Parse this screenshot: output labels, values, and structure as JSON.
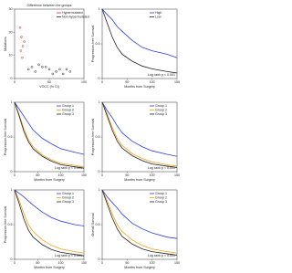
{
  "chart_data": [
    {
      "type": "scatter",
      "title": "Difference between the groups",
      "xlabel": "VOCC (% CI)",
      "ylabel": "Mutations",
      "xlim": [
        0,
        100
      ],
      "ylim": [
        0,
        30
      ],
      "xticks": [
        0,
        50,
        100
      ],
      "yticks": [
        0,
        10,
        20,
        30
      ],
      "series": [
        {
          "name": "Hypermutated",
          "color": "#d62728",
          "x": [
            8,
            10,
            12,
            9,
            11,
            14
          ],
          "values": [
            22,
            18,
            14,
            12,
            9,
            16
          ]
        },
        {
          "name": "Non-hypermutated",
          "color": "#222222",
          "x": [
            20,
            30,
            40,
            50,
            60,
            70,
            35,
            45,
            55,
            65,
            80,
            25,
            75
          ],
          "values": [
            4,
            3,
            5,
            4,
            3,
            2,
            6,
            5,
            2,
            4,
            3,
            5,
            4
          ]
        }
      ]
    },
    {
      "type": "line",
      "title": "",
      "annotation": "Log rank p < 0.001",
      "xlabel": "Months from Surgery",
      "ylabel": "Progression-free Survival",
      "xlim": [
        0,
        150
      ],
      "ylim": [
        0,
        1
      ],
      "xticks": [
        0,
        50,
        100,
        150
      ],
      "yticks": [
        0,
        0.5,
        1
      ],
      "x": [
        0,
        10,
        20,
        30,
        40,
        60,
        80,
        100,
        130,
        150
      ],
      "series": [
        {
          "name": "High",
          "color": "#2b3fd1",
          "values": [
            1,
            0.92,
            0.85,
            0.75,
            0.68,
            0.55,
            0.45,
            0.4,
            0.35,
            0.3
          ]
        },
        {
          "name": "Low",
          "color": "#222222",
          "values": [
            1,
            0.8,
            0.6,
            0.45,
            0.35,
            0.25,
            0.18,
            0.14,
            0.1,
            0.08
          ]
        }
      ]
    },
    {
      "type": "line",
      "title": "",
      "annotation": "Log rank p < 0.001",
      "xlabel": "Months from Surgery",
      "ylabel": "Progression-free Survival",
      "xlim": [
        0,
        150
      ],
      "ylim": [
        0,
        1
      ],
      "xticks": [
        0,
        50,
        100,
        150
      ],
      "yticks": [
        0,
        0.5,
        1
      ],
      "x": [
        0,
        10,
        20,
        30,
        40,
        60,
        80,
        100,
        130,
        150
      ],
      "series": [
        {
          "name": "Group 1",
          "color": "#2b3fd1",
          "values": [
            1,
            0.9,
            0.8,
            0.7,
            0.6,
            0.48,
            0.4,
            0.33,
            0.28,
            0.25
          ]
        },
        {
          "name": "Group 2",
          "color": "#f0a020",
          "values": [
            1,
            0.82,
            0.62,
            0.46,
            0.36,
            0.24,
            0.17,
            0.12,
            0.09,
            0.07
          ]
        },
        {
          "name": "Group 3",
          "color": "#222222",
          "values": [
            1,
            0.8,
            0.58,
            0.43,
            0.33,
            0.22,
            0.15,
            0.1,
            0.07,
            0.05
          ]
        }
      ]
    },
    {
      "type": "line",
      "title": "",
      "annotation": "Log rank p < 0.001",
      "xlabel": "Months from Surgery",
      "ylabel": "Progression-free Survival",
      "xlim": [
        0,
        150
      ],
      "ylim": [
        0,
        1
      ],
      "xticks": [
        0,
        50,
        100,
        150
      ],
      "yticks": [
        0,
        0.5,
        1
      ],
      "x": [
        0,
        10,
        20,
        30,
        40,
        60,
        80,
        100,
        130,
        150
      ],
      "series": [
        {
          "name": "Group 1",
          "color": "#2b3fd1",
          "values": [
            1,
            0.88,
            0.78,
            0.66,
            0.56,
            0.44,
            0.36,
            0.3,
            0.25,
            0.22
          ]
        },
        {
          "name": "Group 2",
          "color": "#f0a020",
          "values": [
            1,
            0.83,
            0.64,
            0.48,
            0.38,
            0.26,
            0.19,
            0.14,
            0.1,
            0.08
          ]
        },
        {
          "name": "Group 3",
          "color": "#222222",
          "values": [
            1,
            0.8,
            0.6,
            0.44,
            0.34,
            0.23,
            0.16,
            0.11,
            0.08,
            0.06
          ]
        }
      ]
    },
    {
      "type": "line",
      "title": "",
      "annotation": "Log rank p < 0.001",
      "xlabel": "Months from Surgery",
      "ylabel": "Progression-free Survival",
      "xlim": [
        0,
        150
      ],
      "ylim": [
        0,
        1
      ],
      "xticks": [
        0,
        50,
        100,
        150
      ],
      "yticks": [
        0,
        0.5,
        1
      ],
      "x": [
        0,
        10,
        20,
        30,
        40,
        60,
        80,
        100,
        130,
        150
      ],
      "series": [
        {
          "name": "Group 1",
          "color": "#2b3fd1",
          "values": [
            1,
            0.95,
            0.9,
            0.84,
            0.78,
            0.68,
            0.6,
            0.55,
            0.5,
            0.48
          ]
        },
        {
          "name": "Group 2",
          "color": "#f0a020",
          "values": [
            1,
            0.85,
            0.66,
            0.5,
            0.4,
            0.28,
            0.2,
            0.15,
            0.11,
            0.09
          ]
        },
        {
          "name": "Group 3",
          "color": "#222222",
          "values": [
            1,
            0.8,
            0.58,
            0.42,
            0.32,
            0.21,
            0.14,
            0.1,
            0.07,
            0.05
          ]
        }
      ]
    },
    {
      "type": "line",
      "title": "",
      "annotation": "Log rank p < 0.001",
      "xlabel": "Months from Surgery",
      "ylabel": "Overall Survival",
      "xlim": [
        0,
        150
      ],
      "ylim": [
        0,
        1
      ],
      "xticks": [
        0,
        50,
        100,
        150
      ],
      "yticks": [
        0,
        0.5,
        1
      ],
      "x": [
        0,
        10,
        20,
        30,
        40,
        60,
        80,
        100,
        130,
        150
      ],
      "series": [
        {
          "name": "Group 1",
          "color": "#2b3fd1",
          "values": [
            1,
            0.9,
            0.82,
            0.74,
            0.65,
            0.52,
            0.44,
            0.38,
            0.32,
            0.3
          ]
        },
        {
          "name": "Group 2",
          "color": "#f0a020",
          "values": [
            1,
            0.84,
            0.66,
            0.5,
            0.4,
            0.28,
            0.2,
            0.15,
            0.11,
            0.09
          ]
        },
        {
          "name": "Group 3",
          "color": "#222222",
          "values": [
            1,
            0.8,
            0.6,
            0.44,
            0.33,
            0.22,
            0.15,
            0.11,
            0.08,
            0.06
          ]
        }
      ]
    }
  ]
}
